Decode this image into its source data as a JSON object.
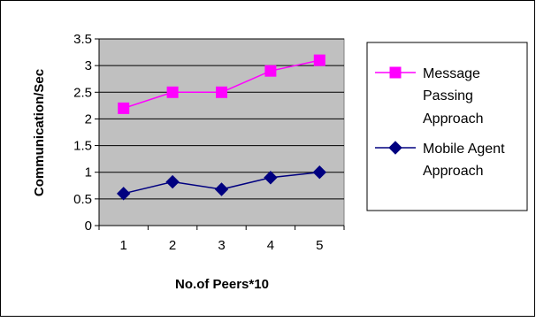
{
  "chart_data": {
    "type": "line",
    "title": "",
    "xlabel": "No.of Peers*10",
    "ylabel": "Communication/Sec",
    "categories": [
      "1",
      "2",
      "3",
      "4",
      "5"
    ],
    "ylim": [
      0,
      3.5
    ],
    "yticks": [
      "0",
      "0.5",
      "1",
      "1.5",
      "2",
      "2.5",
      "3",
      "3.5"
    ],
    "grid": true,
    "legend_position": "right",
    "series": [
      {
        "name_lines": [
          "Message",
          "Passing",
          "Approach"
        ],
        "values": [
          2.2,
          2.5,
          2.5,
          2.9,
          3.1
        ],
        "color": "#ff00ff",
        "marker": "square"
      },
      {
        "name_lines": [
          "Mobile Agent",
          "Approach"
        ],
        "values": [
          0.6,
          0.82,
          0.68,
          0.9,
          1.0
        ],
        "color": "#000080",
        "marker": "diamond"
      }
    ],
    "plot_background": "#c0c0c0"
  }
}
